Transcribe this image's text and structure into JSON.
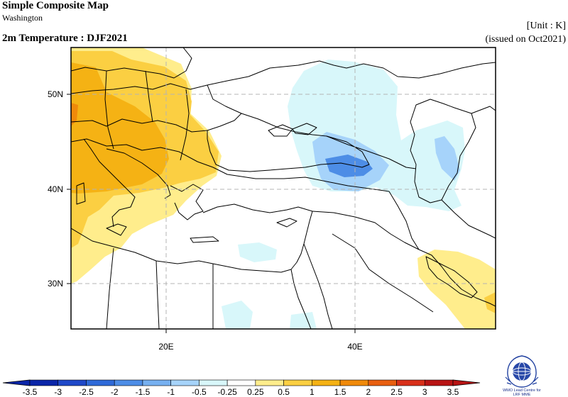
{
  "header": {
    "title": "Simple Composite Map",
    "location": "Washington",
    "variable_period": "2m Temperature : DJF2021",
    "unit": "[Unit : K]",
    "issued": "(issued on Oct2021)"
  },
  "map": {
    "lat_labels": [
      "50N",
      "40N",
      "30N"
    ],
    "lon_labels": [
      "20E",
      "40E"
    ],
    "gridlines": "dashed"
  },
  "colorbar": {
    "labels": [
      "-3.5",
      "-3",
      "-2.5",
      "-2",
      "-1.5",
      "-1",
      "-0.5",
      "-0.25",
      "0.25",
      "0.5",
      "1",
      "1.5",
      "2",
      "2.5",
      "3",
      "3.5"
    ],
    "colors": [
      "#0a25a8",
      "#1f48c8",
      "#2f6ad8",
      "#4d8de6",
      "#77b0f0",
      "#a6d3fa",
      "#d8f7fa",
      "#ffffff",
      "#ffed8c",
      "#fbcf42",
      "#f5b214",
      "#f08a0a",
      "#e85f10",
      "#d8301a",
      "#b81414"
    ]
  },
  "colors": {
    "warm_light": "#ffed8c",
    "warm_mid": "#fbcf42",
    "warm_strong": "#f5b214",
    "cool_light": "#d8f7fa",
    "cool_mid": "#a6d3fa",
    "cool_strong": "#4d8de6"
  },
  "logo": {
    "icon": "wmo-globe-emblem",
    "line1": "WMO Lead Centre for",
    "line2": "LRF MME"
  }
}
